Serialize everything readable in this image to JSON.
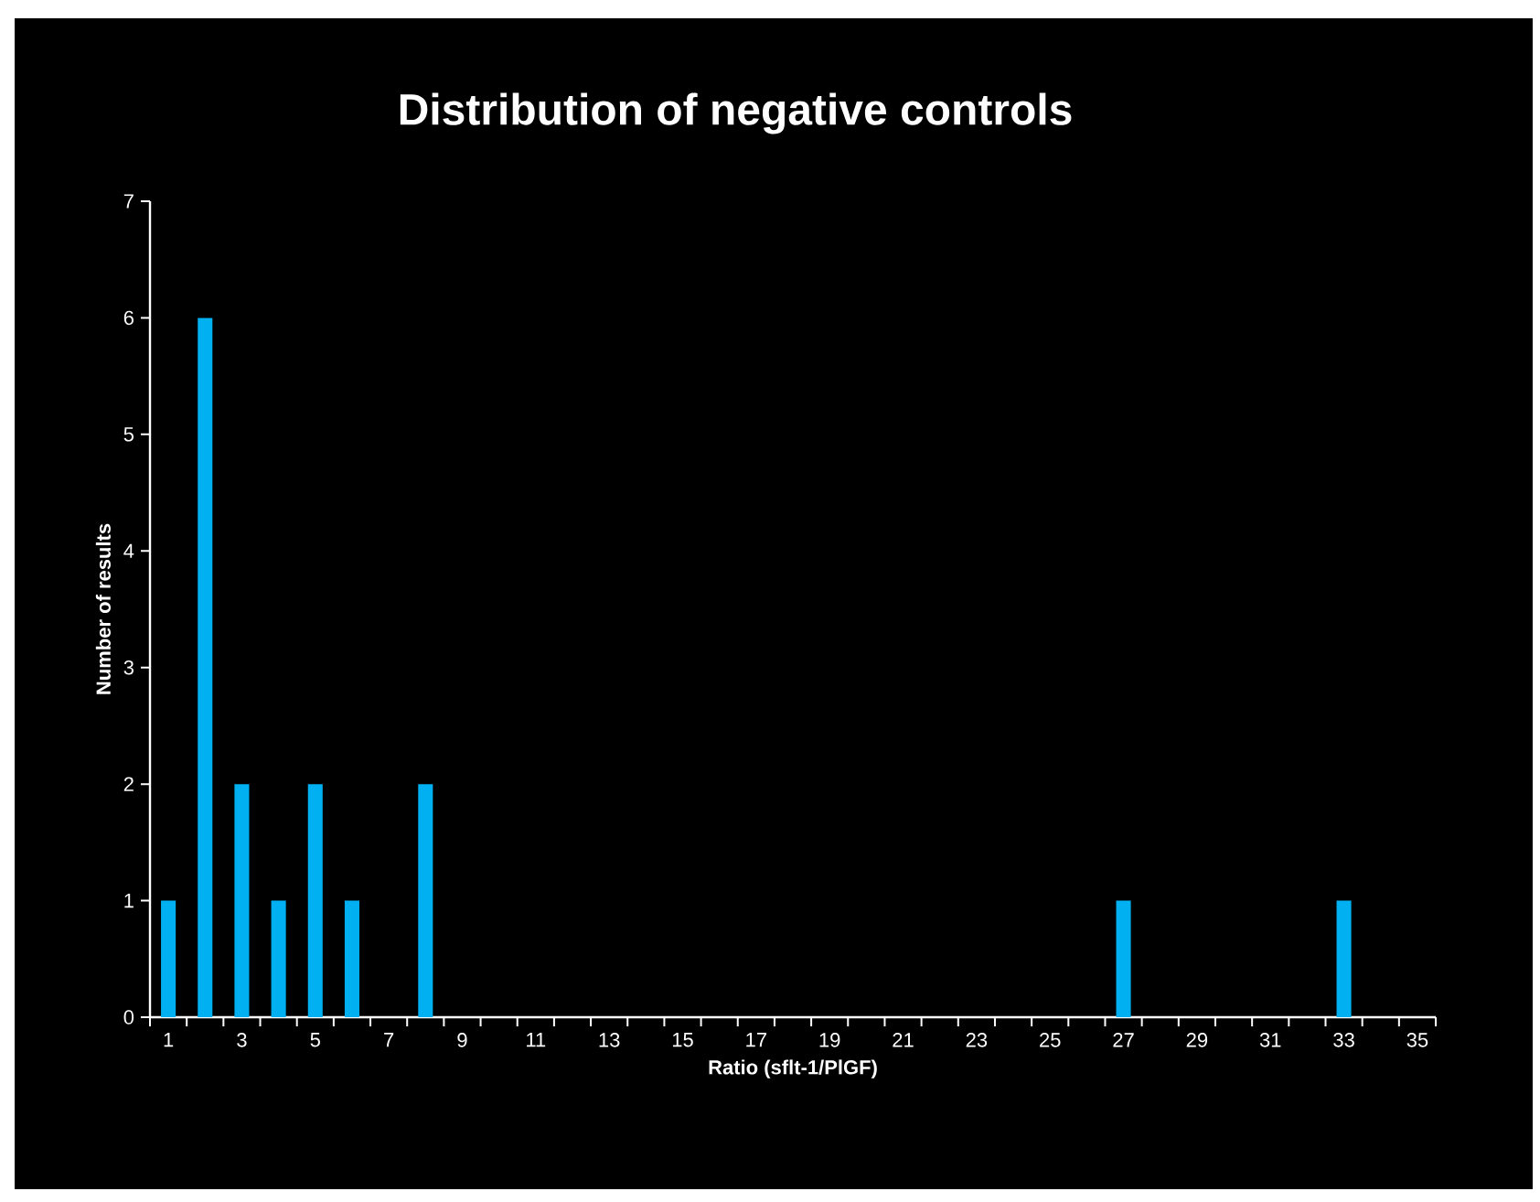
{
  "chart_data": {
    "type": "bar",
    "title": "Distribution of negative controls",
    "xlabel": "Ratio (sflt-1/PlGF)",
    "ylabel": "Number of results",
    "categories": [
      "1",
      null,
      "3",
      null,
      "5",
      null,
      "7",
      null,
      "9",
      null,
      "11",
      null,
      "13",
      null,
      "15",
      null,
      "17",
      null,
      "19",
      null,
      "21",
      null,
      "23",
      null,
      "25",
      null,
      "27",
      null,
      "29",
      null,
      "31",
      null,
      "33",
      null,
      "35"
    ],
    "values": [
      1,
      6,
      2,
      1,
      2,
      1,
      0,
      2,
      0,
      0,
      0,
      0,
      0,
      0,
      0,
      0,
      0,
      0,
      0,
      0,
      0,
      0,
      0,
      0,
      0,
      0,
      1,
      0,
      0,
      0,
      0,
      0,
      1,
      0,
      0
    ],
    "color": "#00b0f0",
    "ylim": [
      0,
      7
    ],
    "yticks": [
      0,
      1,
      2,
      3,
      4,
      5,
      6,
      7
    ]
  }
}
